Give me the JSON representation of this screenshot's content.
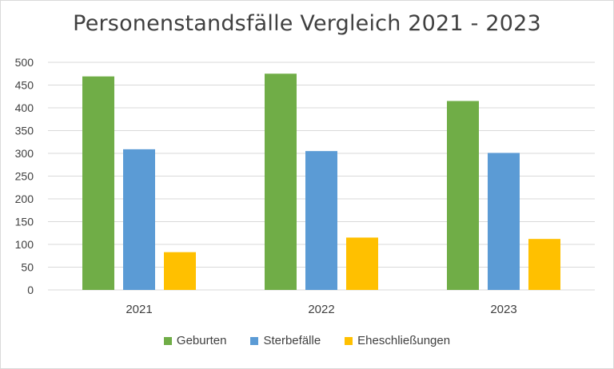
{
  "chart_data": {
    "type": "bar",
    "title": "Personenstandsfälle Vergleich 2021 - 2023",
    "categories": [
      "2021",
      "2022",
      "2023"
    ],
    "series": [
      {
        "name": "Geburten",
        "values": [
          469,
          475,
          415
        ],
        "color": "#70ad47"
      },
      {
        "name": "Sterbefälle",
        "values": [
          309,
          305,
          301
        ],
        "color": "#5b9bd5"
      },
      {
        "name": "Eheschließungen",
        "values": [
          83,
          115,
          112
        ],
        "color": "#ffc000"
      }
    ],
    "ylim": [
      0,
      500
    ],
    "yticks": [
      0,
      50,
      100,
      150,
      200,
      250,
      300,
      350,
      400,
      450,
      500
    ],
    "grid": true,
    "legend_position": "bottom"
  }
}
